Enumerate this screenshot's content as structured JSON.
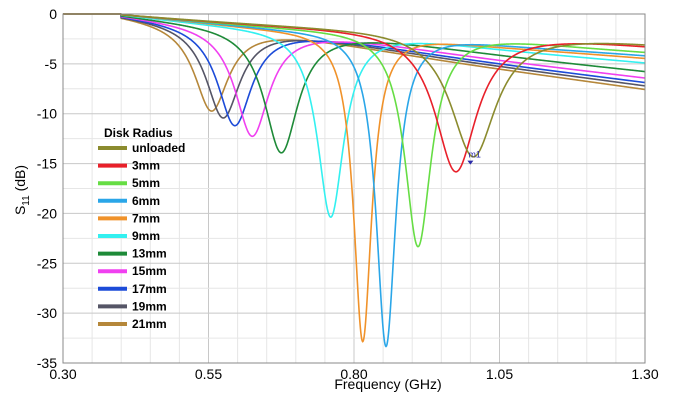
{
  "chart_data": {
    "type": "line",
    "xlabel": "Frequency (GHz)",
    "ylabel_main": "S",
    "ylabel_sub": "11",
    "ylabel_unit": " (dB)",
    "xlim": [
      0.3,
      1.3
    ],
    "ylim": [
      -35,
      0
    ],
    "xticks": [
      "0.30",
      "0.55",
      "0.80",
      "1.05",
      "1.30"
    ],
    "xtick_values": [
      0.3,
      0.55,
      0.8,
      1.05,
      1.3
    ],
    "yticks": [
      "0",
      "-5",
      "-10",
      "-15",
      "-20",
      "-25",
      "-30",
      "-35"
    ],
    "ytick_values": [
      0,
      -5,
      -10,
      -15,
      -20,
      -25,
      -30,
      -35
    ],
    "grid": true,
    "legend_title": "Disk Radius",
    "legend_position": "left",
    "marker": {
      "label": "m1",
      "x": 1.0,
      "y": -14.5
    },
    "series": [
      {
        "name": "unloaded",
        "color": "#8b8b2e",
        "resonance_ghz": 1.005,
        "min_db": -15.0,
        "half_width_ghz": 0.06
      },
      {
        "name": "3mm",
        "color": "#e8202a",
        "resonance_ghz": 0.975,
        "min_db": -16.5,
        "half_width_ghz": 0.055
      },
      {
        "name": "5mm",
        "color": "#66dd44",
        "resonance_ghz": 0.91,
        "min_db": -24.0,
        "half_width_ghz": 0.035
      },
      {
        "name": "6mm",
        "color": "#2aa6e8",
        "resonance_ghz": 0.855,
        "min_db": -34.0,
        "half_width_ghz": 0.026
      },
      {
        "name": "7mm",
        "color": "#f0922a",
        "resonance_ghz": 0.815,
        "min_db": -33.5,
        "half_width_ghz": 0.024
      },
      {
        "name": "9mm",
        "color": "#33f0f0",
        "resonance_ghz": 0.76,
        "min_db": -21.0,
        "half_width_ghz": 0.035
      },
      {
        "name": "13mm",
        "color": "#1e8a38",
        "resonance_ghz": 0.675,
        "min_db": -14.5,
        "half_width_ghz": 0.045
      },
      {
        "name": "15mm",
        "color": "#f040f0",
        "resonance_ghz": 0.625,
        "min_db": -12.8,
        "half_width_ghz": 0.045
      },
      {
        "name": "17mm",
        "color": "#1c4bd8",
        "resonance_ghz": 0.595,
        "min_db": -11.7,
        "half_width_ghz": 0.045
      },
      {
        "name": "19mm",
        "color": "#555566",
        "resonance_ghz": 0.575,
        "min_db": -10.9,
        "half_width_ghz": 0.045
      },
      {
        "name": "21mm",
        "color": "#b5873a",
        "resonance_ghz": 0.555,
        "min_db": -10.2,
        "half_width_ghz": 0.045
      }
    ]
  }
}
